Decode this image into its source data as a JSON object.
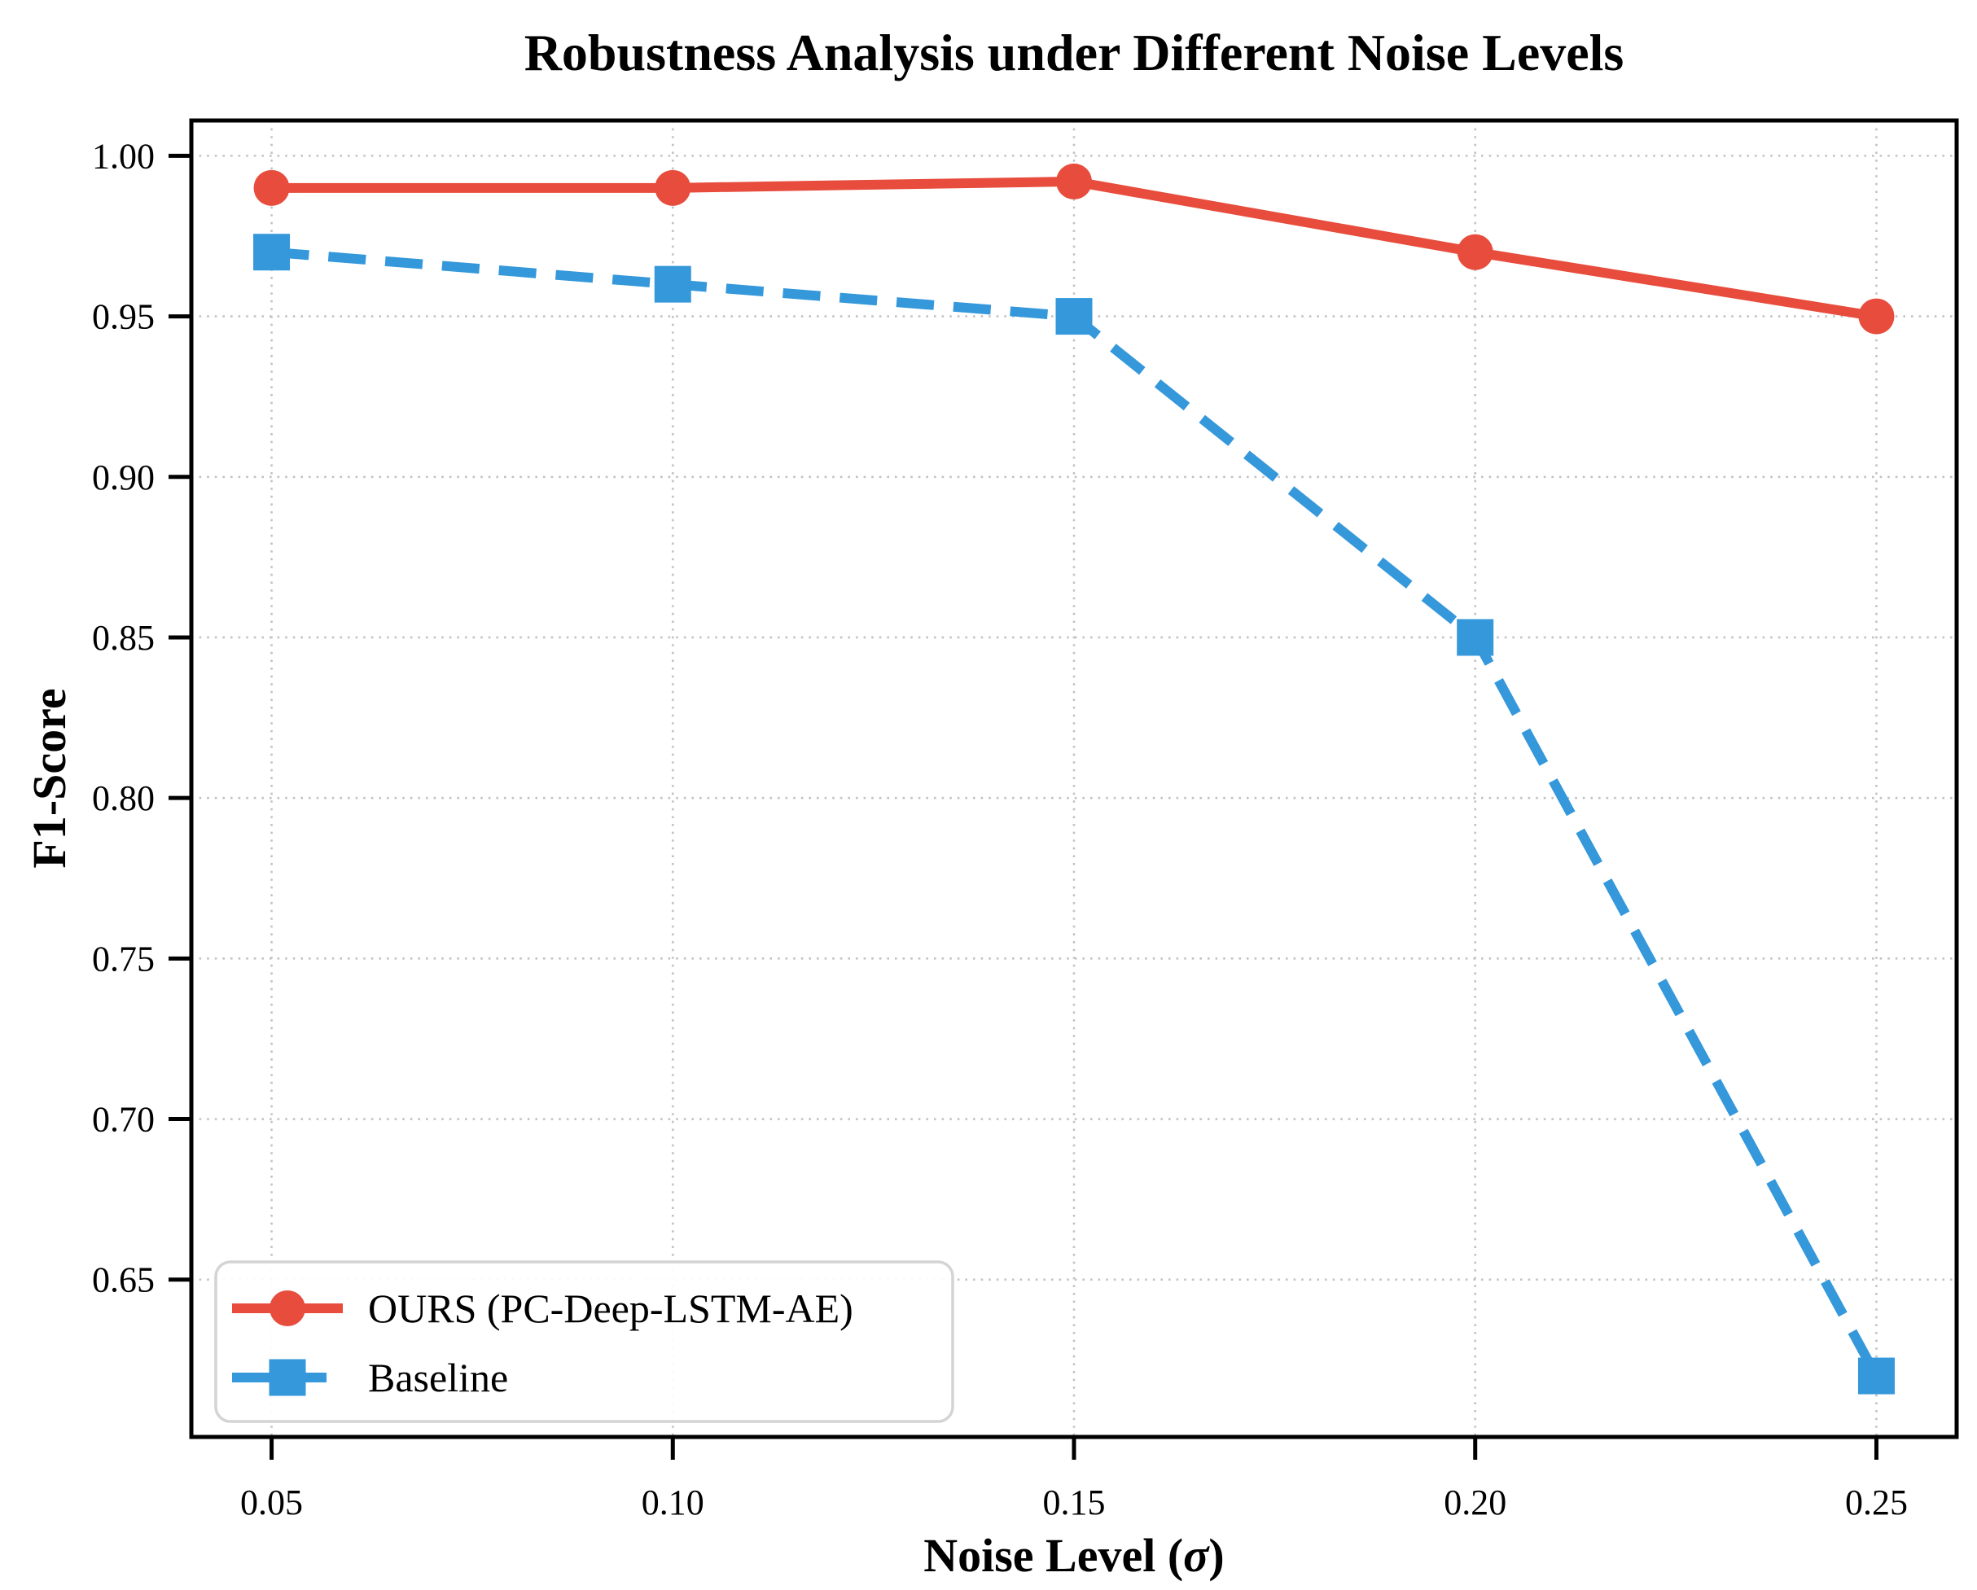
{
  "figure_title": "Robustness Analysis under Different Noise Levels",
  "axis": {
    "x_label_pre": "Noise Level (",
    "x_label_sigma": "σ",
    "x_label_post": ")",
    "y_label": "F1-Score"
  },
  "chart_data": {
    "type": "line",
    "title": "Robustness Analysis under Different Noise Levels",
    "xlabel": "Noise Level (σ)",
    "ylabel": "F1-Score",
    "x": [
      0.05,
      0.1,
      0.15,
      0.2,
      0.25
    ],
    "x_tick_labels": [
      "0.05",
      "0.10",
      "0.15",
      "0.20",
      "0.25"
    ],
    "y_ticks": [
      0.65,
      0.7,
      0.75,
      0.8,
      0.85,
      0.9,
      0.95,
      1.0
    ],
    "y_tick_labels": [
      "0.65",
      "0.70",
      "0.75",
      "0.80",
      "0.85",
      "0.90",
      "0.95",
      "1.00"
    ],
    "xlim": [
      0.04,
      0.26
    ],
    "ylim": [
      0.601,
      1.011
    ],
    "grid": {
      "visible": true,
      "style": "dotted"
    },
    "series": [
      {
        "name": "OURS (PC-Deep-LSTM-AE)",
        "values": [
          0.99,
          0.99,
          0.992,
          0.97,
          0.95
        ],
        "color": "#e74c3c",
        "line_style": "solid",
        "marker": "circle"
      },
      {
        "name": "Baseline",
        "values": [
          0.97,
          0.96,
          0.95,
          0.85,
          0.62
        ],
        "color": "#3498db",
        "line_style": "dashed",
        "marker": "square"
      }
    ],
    "legend": {
      "position": "lower-left",
      "entries": [
        "OURS (PC-Deep-LSTM-AE)",
        "Baseline"
      ]
    }
  },
  "colors": {
    "ours_red": "#e74c3c",
    "baseline_blue": "#3498db",
    "grid": "#c2c2c2",
    "spine": "#000000",
    "background": "#ffffff",
    "legend_border": "#d4d4d4"
  }
}
